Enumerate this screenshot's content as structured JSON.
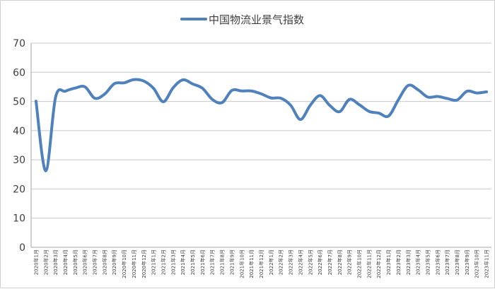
{
  "chart_data": {
    "type": "line",
    "title": "",
    "xlabel": "",
    "ylabel": "",
    "ylim": [
      0,
      70
    ],
    "yticks": [
      "0",
      "10",
      "20",
      "30",
      "40",
      "50",
      "60",
      "70"
    ],
    "grid": true,
    "legend_position": "top-center",
    "x": [
      "2020年1月",
      "2020年2月",
      "2020年3月",
      "2020年4月",
      "2020年5月",
      "2020年6月",
      "2020年7月",
      "2020年8月",
      "2020年9月",
      "2020年10月",
      "2020年11月",
      "2020年12月",
      "2021年1月",
      "2021年2月",
      "2021年3月",
      "2021年4月",
      "2021年5月",
      "2021年6月",
      "2021年7月",
      "2021年8月",
      "2021年9月",
      "2021年10月",
      "2021年11月",
      "2021年12月",
      "2022年1月",
      "2022年2月",
      "2022年3月",
      "2022年4月",
      "2022年5月",
      "2022年6月",
      "2022年7月",
      "2022年8月",
      "2022年9月",
      "2022年10月",
      "2022年11月",
      "2022年12月",
      "2023年1月",
      "2023年2月",
      "2023年3月",
      "2023年4月",
      "2023年5月",
      "2023年6月",
      "2023年7月",
      "2023年8月",
      "2023年9月",
      "2023年10月",
      "2023年11月"
    ],
    "series": [
      {
        "name": "中国物流业景气指数",
        "color": "#4f81bd",
        "values": [
          50.1,
          26.2,
          51.5,
          53.5,
          54.6,
          55.0,
          51.1,
          52.5,
          56.1,
          56.4,
          57.5,
          57.0,
          54.5,
          49.9,
          54.7,
          57.4,
          56.0,
          54.5,
          50.7,
          49.6,
          53.8,
          53.6,
          53.6,
          52.6,
          51.2,
          51.1,
          48.7,
          43.8,
          48.7,
          52.0,
          48.6,
          46.5,
          50.7,
          48.9,
          46.6,
          46.0,
          45.0,
          50.6,
          55.5,
          54.0,
          51.5,
          51.7,
          51.0,
          50.5,
          53.5,
          52.9,
          53.3
        ]
      }
    ]
  }
}
